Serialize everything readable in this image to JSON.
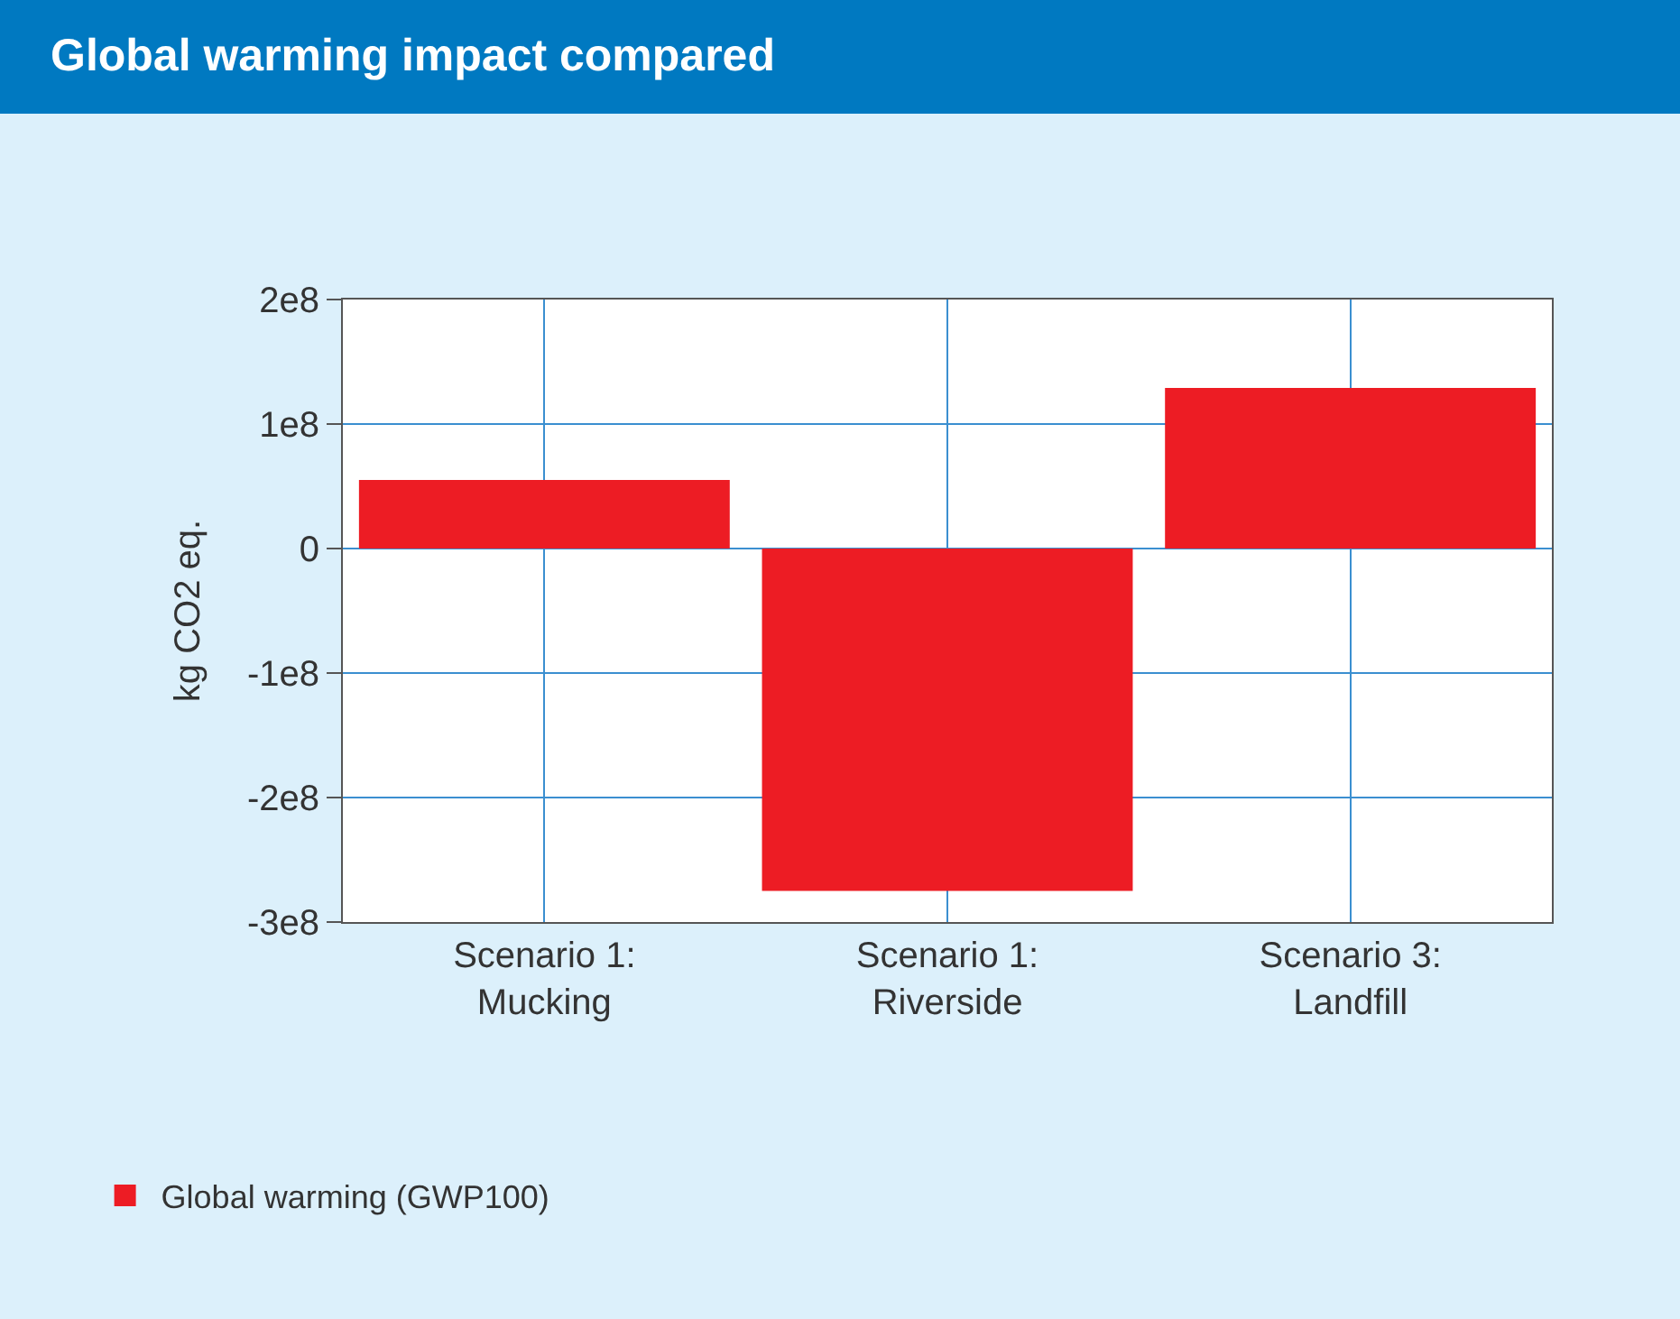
{
  "chart_data": {
    "type": "bar",
    "title": "Global warming impact compared",
    "ylabel": "kg CO2 eq.",
    "categories": [
      "Scenario 1:\nMucking",
      "Scenario 1:\nRiverside",
      "Scenario 3:\nLandfill"
    ],
    "series": [
      {
        "name": "Global warming (GWP100)",
        "color": "#ed1c24",
        "values": [
          55000000,
          -275000000,
          129000000
        ]
      }
    ],
    "ylim": [
      -300000000,
      200000000
    ],
    "yticks": [
      {
        "value": -300000000,
        "label": "-3e8"
      },
      {
        "value": -200000000,
        "label": "-2e8"
      },
      {
        "value": -100000000,
        "label": "-1e8"
      },
      {
        "value": 0,
        "label": "0"
      },
      {
        "value": 100000000,
        "label": "1e8"
      },
      {
        "value": 200000000,
        "label": "2e8"
      }
    ],
    "grid": true,
    "legend": "bottom left"
  }
}
